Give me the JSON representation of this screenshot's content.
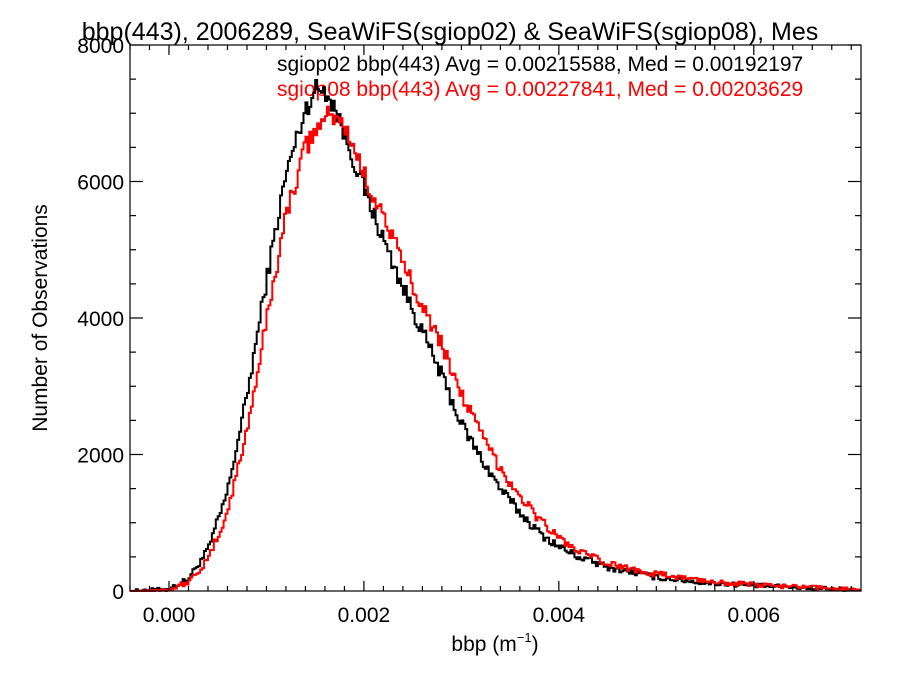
{
  "chart_data": {
    "type": "line",
    "title": "bbp(443), 2006289, SeaWiFS(sgiop02) & SeaWiFS(sgiop08), Mes",
    "xlabel_base": "bbp (m",
    "xlabel_sup": "−1",
    "xlabel_tail": ")",
    "ylabel": "Number of Observations",
    "xlim": [
      -0.0004,
      0.0071
    ],
    "ylim": [
      0,
      8000
    ],
    "xticks": [
      0.0,
      0.002,
      0.004,
      0.006
    ],
    "xtick_labels": [
      "0.000",
      "0.002",
      "0.004",
      "0.006"
    ],
    "yticks": [
      0,
      2000,
      4000,
      6000,
      8000
    ],
    "ytick_labels": [
      "0",
      "2000",
      "4000",
      "6000",
      "8000"
    ],
    "grid": false,
    "legend": "top-right",
    "series": [
      {
        "legend_text": "sgiop02 bbp(443) Avg = 0.00215588, Med = 0.00192197",
        "color": "#000000",
        "x": [
          -0.0004,
          0.0,
          0.0002,
          0.0004,
          0.0006,
          0.0008,
          0.001,
          0.0012,
          0.0014,
          0.0015,
          0.0016,
          0.0017,
          0.0018,
          0.002,
          0.0022,
          0.0024,
          0.0026,
          0.0028,
          0.003,
          0.0032,
          0.0034,
          0.0036,
          0.0038,
          0.004,
          0.0042,
          0.0045,
          0.005,
          0.0055,
          0.006,
          0.0065,
          0.0071
        ],
        "y": [
          0,
          30,
          180,
          600,
          1450,
          2850,
          4550,
          6100,
          7050,
          7350,
          7350,
          7100,
          6700,
          5900,
          5150,
          4450,
          3800,
          3150,
          2450,
          1950,
          1500,
          1150,
          850,
          650,
          500,
          350,
          200,
          120,
          80,
          50,
          20
        ]
      },
      {
        "legend_text": "sgiop08 bbp(443) Avg = 0.00227841, Med = 0.00203629",
        "color": "#ff0000",
        "x": [
          -0.0004,
          0.0,
          0.0002,
          0.0004,
          0.0006,
          0.0008,
          0.001,
          0.0012,
          0.0014,
          0.0016,
          0.0017,
          0.0018,
          0.0019,
          0.002,
          0.0022,
          0.0024,
          0.0026,
          0.0028,
          0.003,
          0.0032,
          0.0034,
          0.0036,
          0.0038,
          0.004,
          0.0042,
          0.0045,
          0.005,
          0.0055,
          0.006,
          0.0065,
          0.0071
        ],
        "y": [
          0,
          20,
          130,
          450,
          1150,
          2350,
          3950,
          5500,
          6500,
          6950,
          6950,
          6800,
          6500,
          6100,
          5500,
          4800,
          4200,
          3600,
          2900,
          2300,
          1800,
          1400,
          1050,
          780,
          580,
          400,
          250,
          150,
          90,
          55,
          25
        ]
      }
    ]
  }
}
